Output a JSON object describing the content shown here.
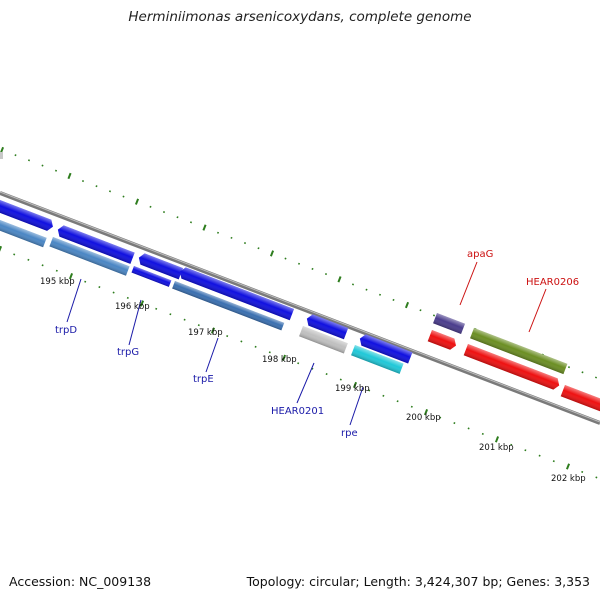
{
  "title": "Herminiimonas arsenicoxydans, complete genome",
  "footer": {
    "accession": "Accession: NC_009138",
    "topology": "Topology: circular; Length: 3,424,307 bp; Genes: 3,353"
  },
  "scale_labels": [
    "195 kbp",
    "196 kbp",
    "197 kbp",
    "198 kbp",
    "199 kbp",
    "200 kbp",
    "201 kbp",
    "202 kbp"
  ],
  "gene_labels": {
    "trpD": "trpD",
    "trpG": "trpG",
    "trpE": "trpE",
    "HEAR0201": "HEAR0201",
    "rpe": "rpe",
    "apaG": "apaG",
    "HEAR0206": "HEAR0206"
  },
  "colors": {
    "backbone": "#7a7a7a",
    "tick": "#2e7d1e",
    "cds_blue": "#1010e0",
    "cds_steel": "#4a86c4",
    "cds_gray": "#c0c0c0",
    "cds_cyan": "#20c8d8",
    "cds_purple": "#4a3c8c",
    "cds_olive": "#6b8e23",
    "cds_red": "#ee1111",
    "label_blue": "#1a1aa8",
    "label_red": "#cc1111"
  }
}
